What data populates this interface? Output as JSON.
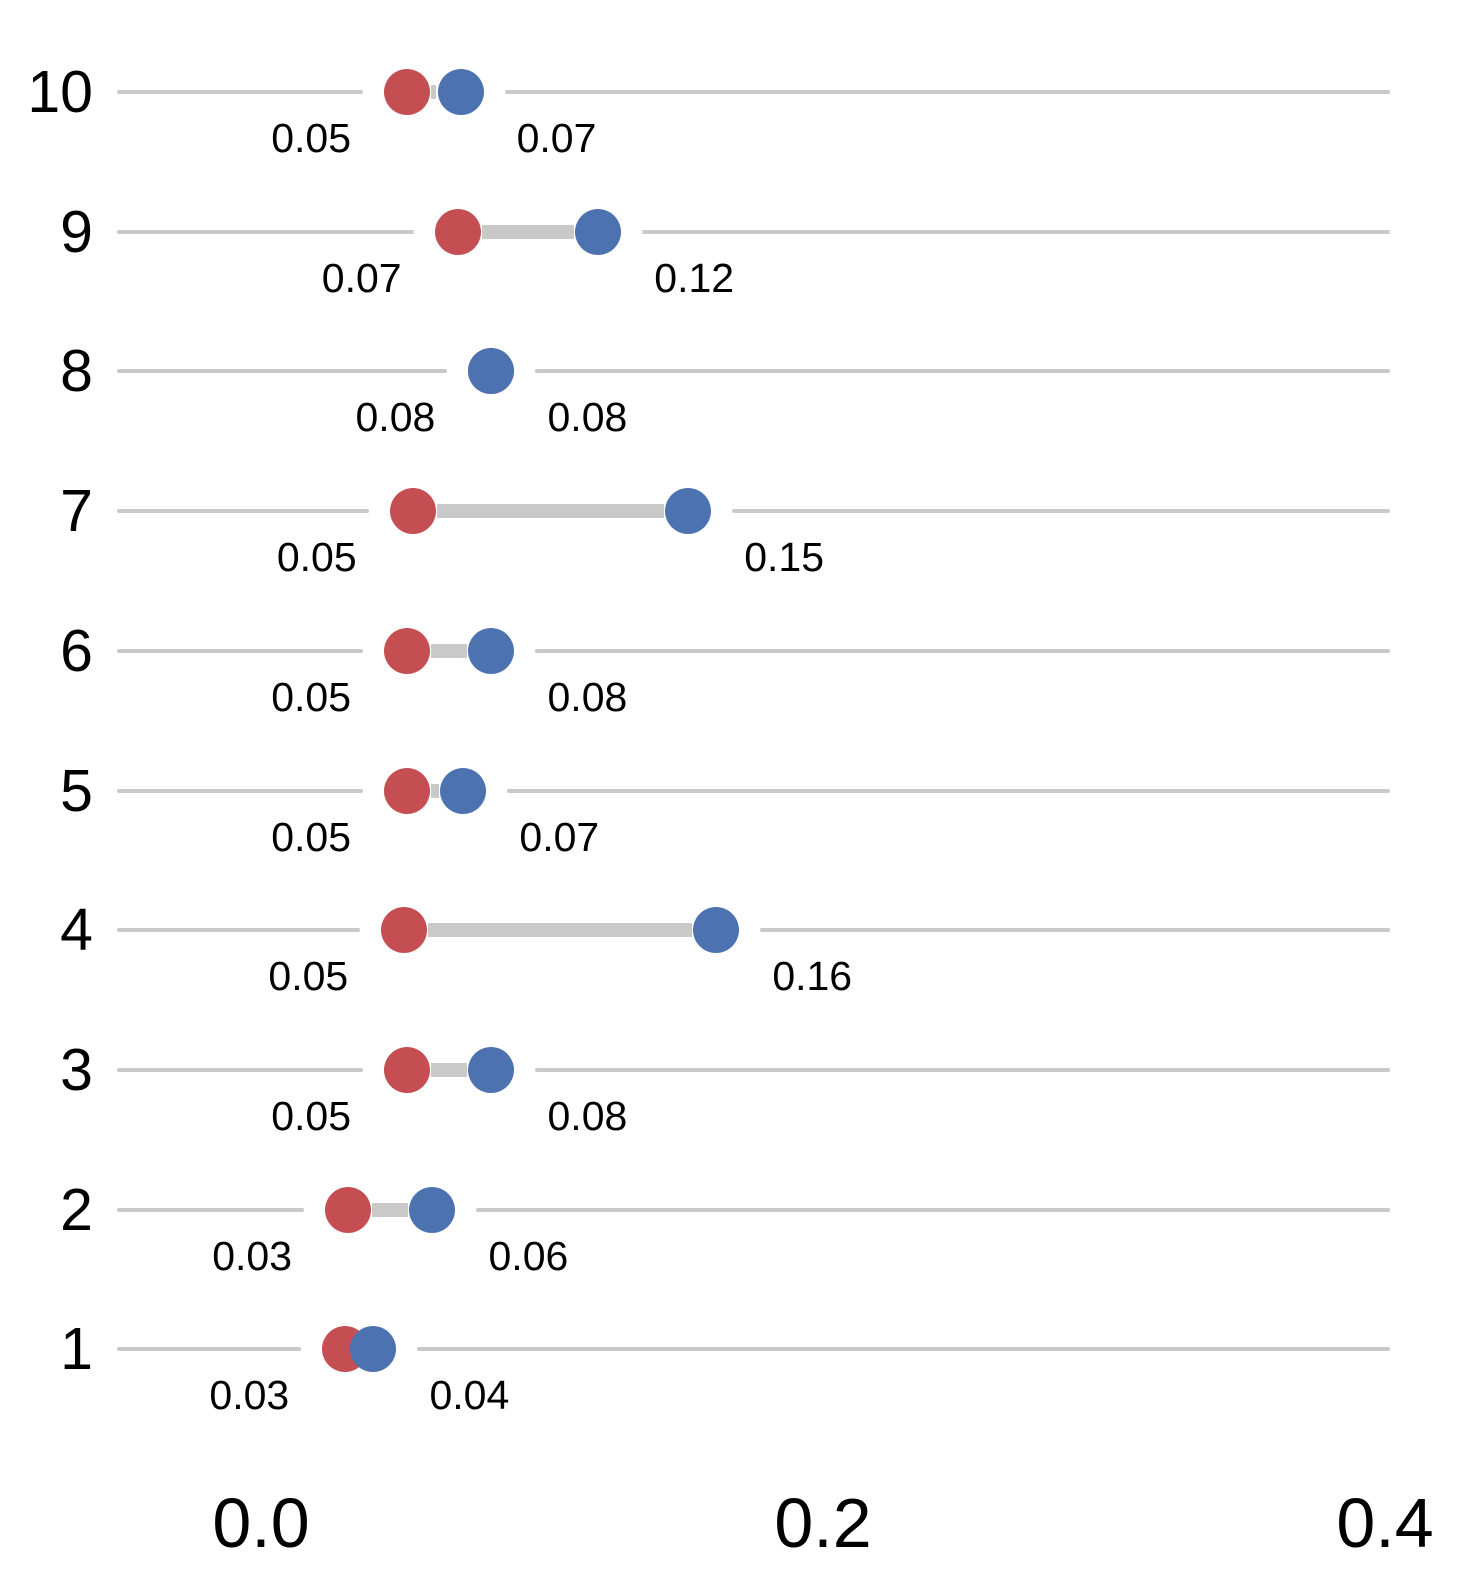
{
  "chart_data": {
    "type": "scatter",
    "subtype": "dumbbell",
    "orientation": "horizontal",
    "title": "",
    "xlabel": "",
    "ylabel": "",
    "grid": "off",
    "legend": "none",
    "categories": [
      "10",
      "9",
      "8",
      "7",
      "6",
      "5",
      "4",
      "3",
      "2",
      "1"
    ],
    "series": [
      {
        "name": "red-series",
        "color": "#C44E52",
        "values": [
          0.052,
          0.07,
          0.082,
          0.054,
          0.052,
          0.052,
          0.051,
          0.052,
          0.031,
          0.03
        ],
        "labels": [
          "0.05",
          "0.07",
          "0.08",
          "0.05",
          "0.05",
          "0.05",
          "0.05",
          "0.05",
          "0.03",
          "0.03"
        ]
      },
      {
        "name": "blue-series",
        "color": "#4C72B0",
        "values": [
          0.071,
          0.12,
          0.082,
          0.152,
          0.082,
          0.072,
          0.162,
          0.082,
          0.061,
          0.04
        ],
        "labels": [
          "0.07",
          "0.12",
          "0.08",
          "0.15",
          "0.08",
          "0.07",
          "0.16",
          "0.08",
          "0.06",
          "0.04"
        ]
      }
    ],
    "x_axis": {
      "range": [
        0.0,
        0.4
      ],
      "ticks": [
        {
          "value": 0.0,
          "label": "0.0"
        },
        {
          "value": 0.2,
          "label": "0.2"
        },
        {
          "value": 0.4,
          "label": "0.4"
        }
      ]
    },
    "colors": {
      "red": "#C44E52",
      "blue": "#4C72B0",
      "line": "#C9C9C9",
      "text": "#000000",
      "background": "#FFFFFF"
    }
  }
}
